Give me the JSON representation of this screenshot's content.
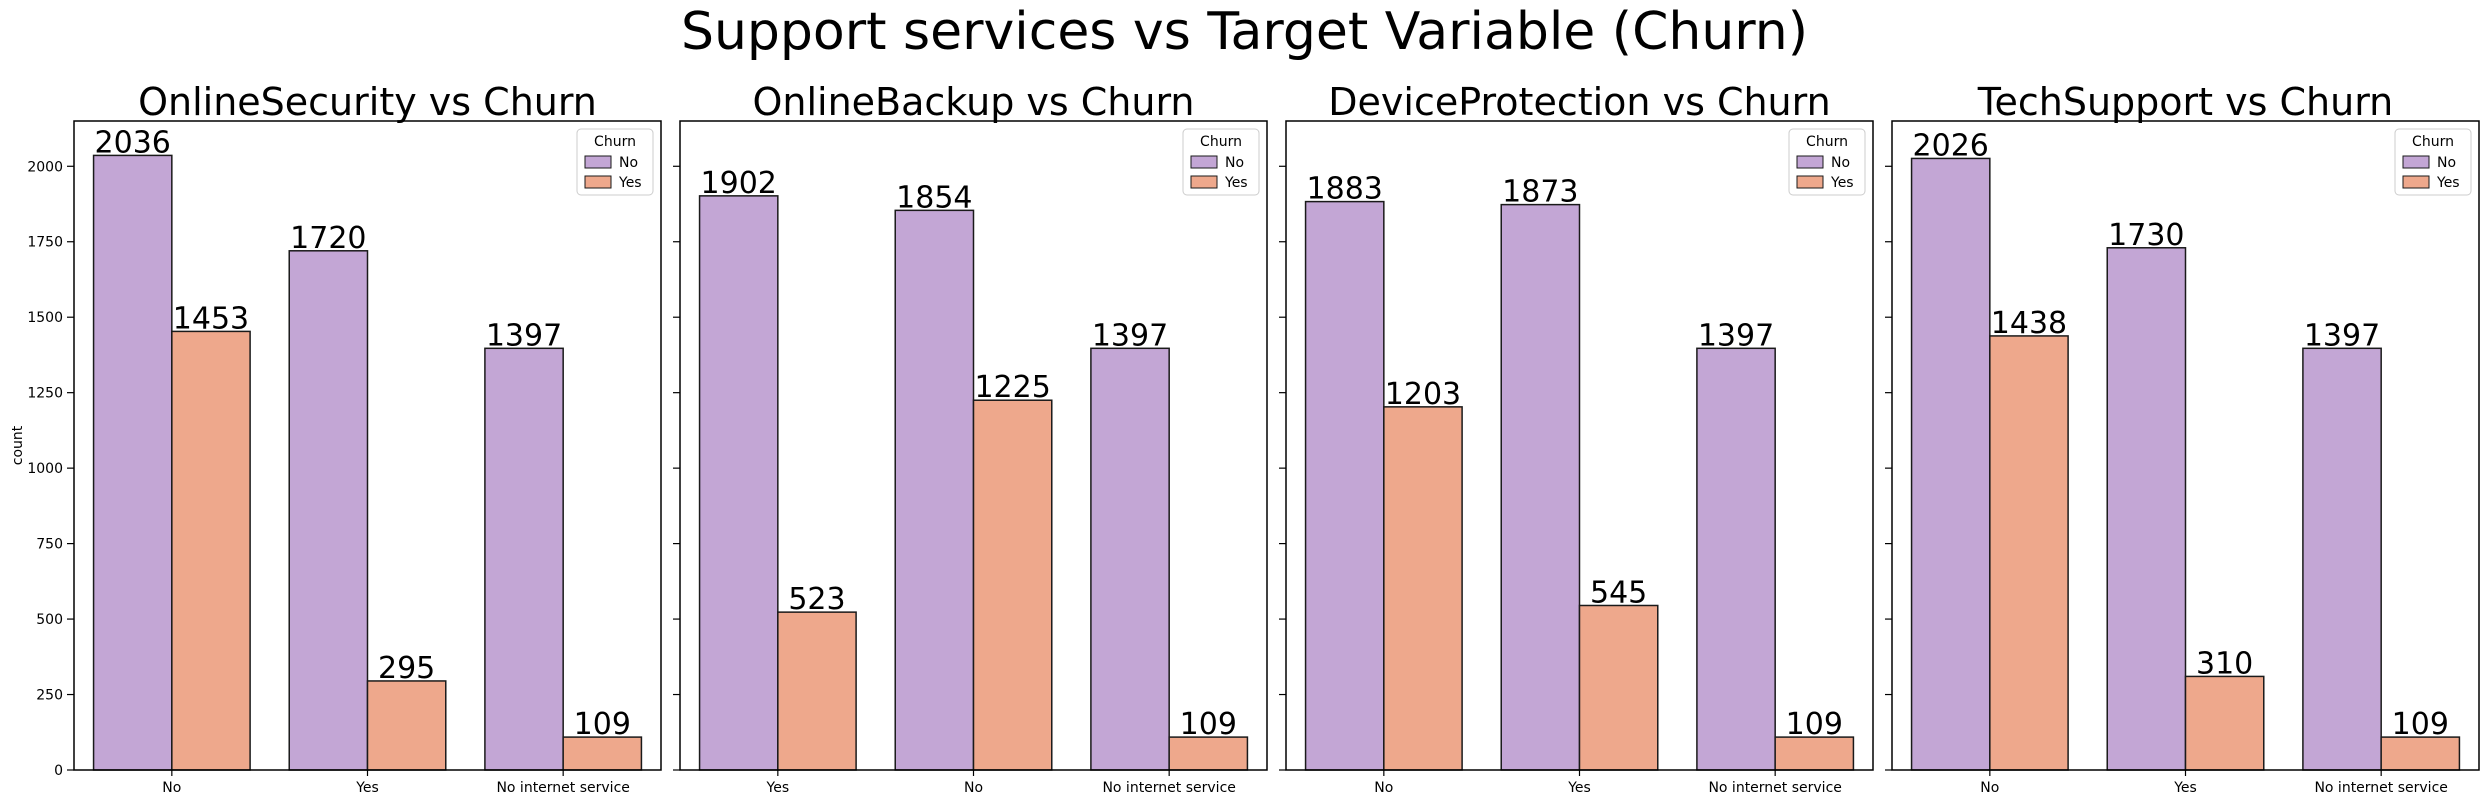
{
  "figure": {
    "title": "Support services vs Target Variable (Churn)",
    "ylabel": "count"
  },
  "colors": {
    "No": "#c3a6d5",
    "Yes": "#eea88c",
    "edge": "#1a1a1a"
  },
  "legend": {
    "title": "Churn",
    "entries": [
      "No",
      "Yes"
    ],
    "placement": "top-right"
  },
  "chart_data": [
    {
      "type": "bar",
      "title": "OnlineSecurity vs Churn",
      "categories": [
        "No",
        "Yes",
        "No internet service"
      ],
      "series": [
        {
          "name": "No",
          "values": [
            2036,
            1720,
            1397
          ]
        },
        {
          "name": "Yes",
          "values": [
            1453,
            295,
            109
          ]
        }
      ],
      "ylim": [
        0,
        2150
      ],
      "yticks": [
        0,
        250,
        500,
        750,
        1000,
        1250,
        1500,
        1750,
        2000
      ],
      "ylabel": "count"
    },
    {
      "type": "bar",
      "title": "OnlineBackup vs Churn",
      "categories": [
        "Yes",
        "No",
        "No internet service"
      ],
      "series": [
        {
          "name": "No",
          "values": [
            1902,
            1854,
            1397
          ]
        },
        {
          "name": "Yes",
          "values": [
            523,
            1225,
            109
          ]
        }
      ],
      "ylim": [
        0,
        2150
      ]
    },
    {
      "type": "bar",
      "title": "DeviceProtection vs Churn",
      "categories": [
        "No",
        "Yes",
        "No internet service"
      ],
      "series": [
        {
          "name": "No",
          "values": [
            1883,
            1873,
            1397
          ]
        },
        {
          "name": "Yes",
          "values": [
            1203,
            545,
            109
          ]
        }
      ],
      "ylim": [
        0,
        2150
      ]
    },
    {
      "type": "bar",
      "title": "TechSupport vs Churn",
      "categories": [
        "No",
        "Yes",
        "No internet service"
      ],
      "series": [
        {
          "name": "No",
          "values": [
            2026,
            1730,
            1397
          ]
        },
        {
          "name": "Yes",
          "values": [
            1438,
            310,
            109
          ]
        }
      ],
      "ylim": [
        0,
        2150
      ]
    }
  ]
}
